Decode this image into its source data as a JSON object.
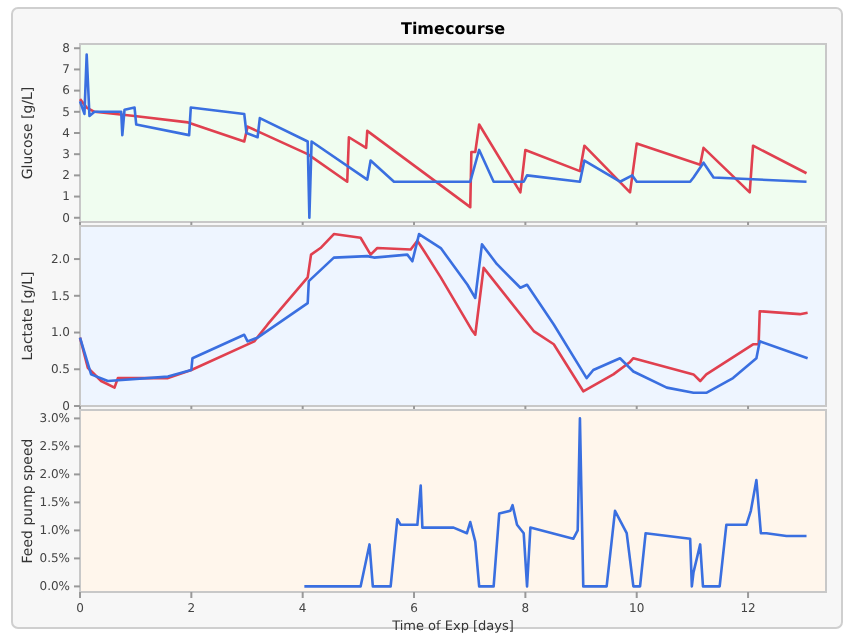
{
  "chart_data": [
    {
      "type": "line",
      "title": "Timecourse",
      "ylabel": "Glucose [g/L]",
      "xlim": [
        0,
        13.4
      ],
      "xticks": [
        0,
        2,
        4,
        6,
        8,
        10,
        12
      ],
      "ylim": [
        -0.2,
        8.2
      ],
      "yticks": [
        0,
        1,
        2,
        3,
        4,
        5,
        6,
        7,
        8
      ],
      "tick_labels": "y",
      "series": [
        {
          "color": "#e0404f",
          "x": [
            0,
            0.12,
            0.26,
            0.98,
            1.94,
            2.95,
            3.01,
            4.09,
            4.8,
            4.83,
            5.14,
            5.16,
            7.01,
            7.03,
            7.1,
            7.17,
            7.91,
            8.0,
            8.98,
            9.06,
            9.88,
            10.0,
            11.14,
            11.2,
            12.03,
            12.09,
            13.05
          ],
          "values": [
            5.6,
            5.2,
            5.0,
            4.8,
            4.5,
            3.6,
            4.3,
            3.0,
            1.7,
            3.8,
            3.3,
            4.1,
            0.5,
            3.1,
            3.1,
            4.4,
            1.2,
            3.2,
            2.2,
            3.4,
            1.2,
            3.5,
            2.5,
            3.3,
            1.2,
            3.4,
            2.1
          ]
        },
        {
          "color": "#3a6fe0",
          "x": [
            0,
            0.08,
            0.12,
            0.17,
            0.26,
            0.74,
            0.76,
            0.8,
            0.98,
            1.01,
            1.96,
            1.99,
            2.95,
            2.99,
            3.19,
            3.23,
            4.09,
            4.12,
            4.16,
            5.16,
            5.22,
            5.64,
            7.01,
            7.17,
            7.43,
            7.97,
            8.03,
            8.98,
            9.06,
            9.7,
            9.92,
            10.0,
            10.96,
            11.02,
            11.2,
            11.38,
            13.05
          ],
          "values": [
            5.5,
            4.9,
            7.7,
            4.8,
            5.0,
            5.0,
            3.9,
            5.1,
            5.2,
            4.4,
            3.9,
            5.2,
            4.9,
            4.0,
            3.8,
            4.7,
            3.6,
            0,
            3.6,
            1.8,
            2.7,
            1.7,
            1.7,
            3.2,
            1.7,
            1.7,
            2.0,
            1.7,
            2.7,
            1.7,
            2.0,
            1.7,
            1.7,
            1.9,
            2.6,
            1.9,
            1.7
          ]
        }
      ]
    },
    {
      "type": "line",
      "ylabel": "Lactate [g/L]",
      "xlim": [
        0,
        13.4
      ],
      "xticks": [
        0,
        2,
        4,
        6,
        8,
        10,
        12
      ],
      "ylim": [
        0,
        2.45
      ],
      "yticks": [
        0,
        0.5,
        {
          "value": 1,
          "label": "1.0"
        },
        1.5,
        {
          "value": 2,
          "label": "2.0"
        }
      ],
      "tick_labels": "y",
      "series": [
        {
          "color": "#e0404f",
          "x": [
            0,
            0.14,
            0.38,
            0.62,
            0.68,
            1.58,
            2.0,
            3.13,
            3.37,
            4.09,
            4.15,
            4.32,
            4.56,
            5.04,
            5.22,
            5.34,
            5.94,
            6.06,
            6.18,
            6.48,
            7.05,
            7.1,
            7.25,
            8.15,
            8.51,
            9.04,
            9.58,
            9.88,
            9.94,
            11.02,
            11.14,
            11.25,
            12.09,
            12.19,
            12.21,
            12.93,
            13.07
          ],
          "values": [
            0.93,
            0.52,
            0.34,
            0.25,
            0.38,
            0.38,
            0.49,
            0.88,
            1.11,
            1.75,
            2.06,
            2.15,
            2.34,
            2.29,
            2.06,
            2.15,
            2.13,
            2.25,
            2.11,
            1.75,
            1.02,
            0.97,
            1.88,
            1.02,
            0.84,
            0.2,
            0.43,
            0.6,
            0.65,
            0.43,
            0.34,
            0.43,
            0.84,
            0.84,
            1.29,
            1.25,
            1.27
          ]
        },
        {
          "color": "#3a6fe0",
          "x": [
            0,
            0.2,
            0.5,
            1.58,
            2.0,
            2.02,
            2.95,
            3.01,
            3.19,
            4.09,
            4.11,
            4.56,
            5.16,
            5.28,
            5.88,
            5.97,
            6.09,
            6.48,
            6.96,
            7.1,
            7.22,
            7.49,
            7.91,
            8.03,
            8.51,
            9.1,
            9.22,
            9.7,
            9.94,
            10.54,
            11.02,
            11.25,
            11.73,
            12.15,
            12.21,
            13.07
          ],
          "values": [
            0.93,
            0.43,
            0.34,
            0.4,
            0.49,
            0.65,
            0.97,
            0.88,
            0.93,
            1.4,
            1.7,
            2.02,
            2.04,
            2.02,
            2.06,
            1.97,
            2.34,
            2.15,
            1.65,
            1.47,
            2.2,
            1.93,
            1.61,
            1.65,
            1.11,
            0.38,
            0.49,
            0.65,
            0.47,
            0.25,
            0.18,
            0.18,
            0.38,
            0.65,
            0.88,
            0.65
          ]
        }
      ]
    },
    {
      "type": "line",
      "xlabel": "Time of Exp [days]",
      "ylabel": "Feed pump speed",
      "xlim": [
        0,
        13.4
      ],
      "xticks": [
        0,
        2,
        4,
        6,
        8,
        10,
        12
      ],
      "ylim": [
        -0.1,
        3.15
      ],
      "yticks": [
        {
          "value": 0,
          "label": "0.0%"
        },
        {
          "value": 0.5,
          "label": "0.5%"
        },
        {
          "value": 1,
          "label": "1.0%"
        },
        {
          "value": 1.5,
          "label": "1.5%"
        },
        {
          "value": 2,
          "label": "2.0%"
        },
        {
          "value": 2.5,
          "label": "2.5%"
        },
        {
          "value": 3,
          "label": "3.0%"
        }
      ],
      "series": [
        {
          "color": "#3a6fe0",
          "x": [
            4.03,
            5.04,
            5.2,
            5.26,
            5.58,
            5.7,
            5.76,
            6.06,
            6.12,
            6.15,
            6.71,
            6.95,
            7.01,
            7.1,
            7.17,
            7.43,
            7.53,
            7.73,
            7.77,
            7.85,
            7.97,
            8.03,
            8.09,
            8.86,
            8.94,
            8.98,
            9.04,
            9.46,
            9.61,
            9.82,
            9.94,
            10.06,
            10.16,
            10.96,
            10.99,
            11.02,
            11.14,
            11.19,
            11.49,
            11.61,
            11.97,
            12.05,
            12.15,
            12.23,
            12.33,
            12.69,
            13.05
          ],
          "values": [
            0,
            0,
            0.75,
            0,
            0,
            1.2,
            1.1,
            1.1,
            1.8,
            1.05,
            1.05,
            0.95,
            1.15,
            0.8,
            0,
            0,
            1.3,
            1.35,
            1.45,
            1.1,
            0.95,
            0,
            1.05,
            0.85,
            1.0,
            3.0,
            0,
            0,
            1.35,
            0.95,
            0,
            0,
            0.95,
            0.85,
            0,
            0.25,
            0.75,
            0,
            0,
            1.1,
            1.1,
            1.35,
            1.9,
            0.95,
            0.95,
            0.9,
            0.9
          ]
        }
      ]
    }
  ]
}
